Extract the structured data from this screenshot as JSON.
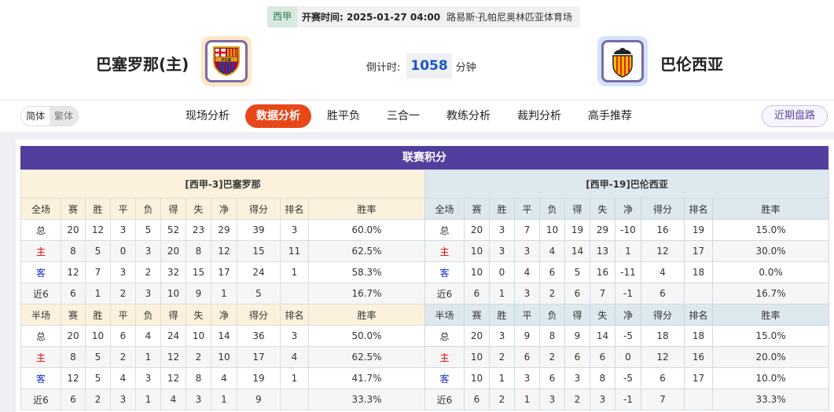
{
  "match": {
    "league": "西甲",
    "kickoff": "开赛时间: 2025-01-27 04:00",
    "venue": "路易斯·孔帕尼奥林匹亚体育场",
    "home": "巴塞罗那(主)",
    "away": "巴伦西亚",
    "home_logo_text": "FCB",
    "countdown_label": "倒计时:",
    "countdown_value": "1058",
    "countdown_unit": "分钟"
  },
  "lang": {
    "simplified": "简体",
    "traditional": "繁体"
  },
  "nav": [
    {
      "label": "现场分析"
    },
    {
      "label": "数据分析",
      "active": true
    },
    {
      "label": "胜平负"
    },
    {
      "label": "三合一"
    },
    {
      "label": "教练分析"
    },
    {
      "label": "裁判分析"
    },
    {
      "label": "高手推荐"
    }
  ],
  "recent_button": "近期盘路",
  "colors": {
    "accent": "#e8471a",
    "title_bg": "#523f9d",
    "home_text": "#e00000",
    "away_text": "#1a2fc8"
  },
  "standings": {
    "title": "联赛积分",
    "columns": [
      "赛",
      "胜",
      "平",
      "负",
      "得",
      "失",
      "净",
      "得分",
      "排名",
      "胜率"
    ],
    "home": {
      "team": "[西甲-3]巴塞罗那",
      "full": {
        "label": "全场",
        "rows": [
          [
            "总",
            "20",
            "12",
            "3",
            "5",
            "52",
            "23",
            "29",
            "39",
            "3",
            "60.0%"
          ],
          [
            "主",
            "8",
            "5",
            "0",
            "3",
            "20",
            "8",
            "12",
            "15",
            "11",
            "62.5%"
          ],
          [
            "客",
            "12",
            "7",
            "3",
            "2",
            "32",
            "15",
            "17",
            "24",
            "1",
            "58.3%"
          ],
          [
            "近6",
            "6",
            "1",
            "2",
            "3",
            "10",
            "9",
            "1",
            "5",
            "",
            "16.7%"
          ]
        ]
      },
      "half": {
        "label": "半场",
        "rows": [
          [
            "总",
            "20",
            "10",
            "6",
            "4",
            "24",
            "10",
            "14",
            "36",
            "3",
            "50.0%"
          ],
          [
            "主",
            "8",
            "5",
            "2",
            "1",
            "12",
            "2",
            "10",
            "17",
            "4",
            "62.5%"
          ],
          [
            "客",
            "12",
            "5",
            "4",
            "3",
            "12",
            "8",
            "4",
            "19",
            "1",
            "41.7%"
          ],
          [
            "近6",
            "6",
            "2",
            "3",
            "1",
            "4",
            "3",
            "1",
            "9",
            "",
            "33.3%"
          ]
        ]
      }
    },
    "away": {
      "team": "[西甲-19]巴伦西亚",
      "full": {
        "label": "全场",
        "rows": [
          [
            "总",
            "20",
            "3",
            "7",
            "10",
            "19",
            "29",
            "-10",
            "16",
            "19",
            "15.0%"
          ],
          [
            "主",
            "10",
            "3",
            "3",
            "4",
            "14",
            "13",
            "1",
            "12",
            "17",
            "30.0%"
          ],
          [
            "客",
            "10",
            "0",
            "4",
            "6",
            "5",
            "16",
            "-11",
            "4",
            "18",
            "0.0%"
          ],
          [
            "近6",
            "6",
            "1",
            "3",
            "2",
            "6",
            "7",
            "-1",
            "6",
            "",
            "16.7%"
          ]
        ]
      },
      "half": {
        "label": "半场",
        "rows": [
          [
            "总",
            "20",
            "3",
            "9",
            "8",
            "9",
            "14",
            "-5",
            "18",
            "18",
            "15.0%"
          ],
          [
            "主",
            "10",
            "2",
            "6",
            "2",
            "6",
            "6",
            "0",
            "12",
            "16",
            "20.0%"
          ],
          [
            "客",
            "10",
            "1",
            "3",
            "6",
            "3",
            "8",
            "-5",
            "6",
            "17",
            "10.0%"
          ],
          [
            "近6",
            "6",
            "2",
            "1",
            "3",
            "2",
            "3",
            "-1",
            "7",
            "",
            "33.3%"
          ]
        ]
      }
    }
  }
}
